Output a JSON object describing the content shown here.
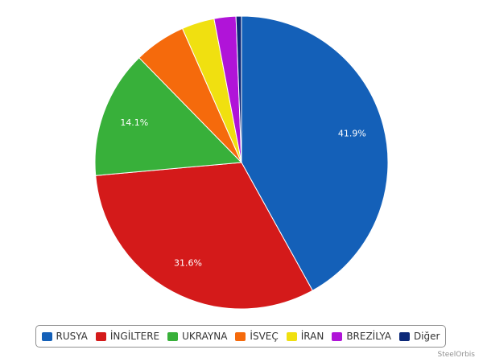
{
  "chart_data": {
    "type": "pie",
    "title": "",
    "categories": [
      "RUSYA",
      "İNGİLTERE",
      "UKRAYNA",
      "İSVEÇ",
      "İRAN",
      "BREZİLYA",
      "Diğer"
    ],
    "values": [
      41.9,
      31.6,
      14.1,
      5.7,
      3.6,
      2.4,
      0.6
    ],
    "data_labels": [
      "41.9%",
      "31.6%",
      "14.1%",
      "",
      "",
      "",
      ""
    ],
    "colors": [
      "#1460b8",
      "#d41a1a",
      "#38b03a",
      "#f56a0c",
      "#f0e010",
      "#b014d8",
      "#0c2878"
    ],
    "legend_position": "bottom"
  },
  "credit": "SteelOrbis"
}
